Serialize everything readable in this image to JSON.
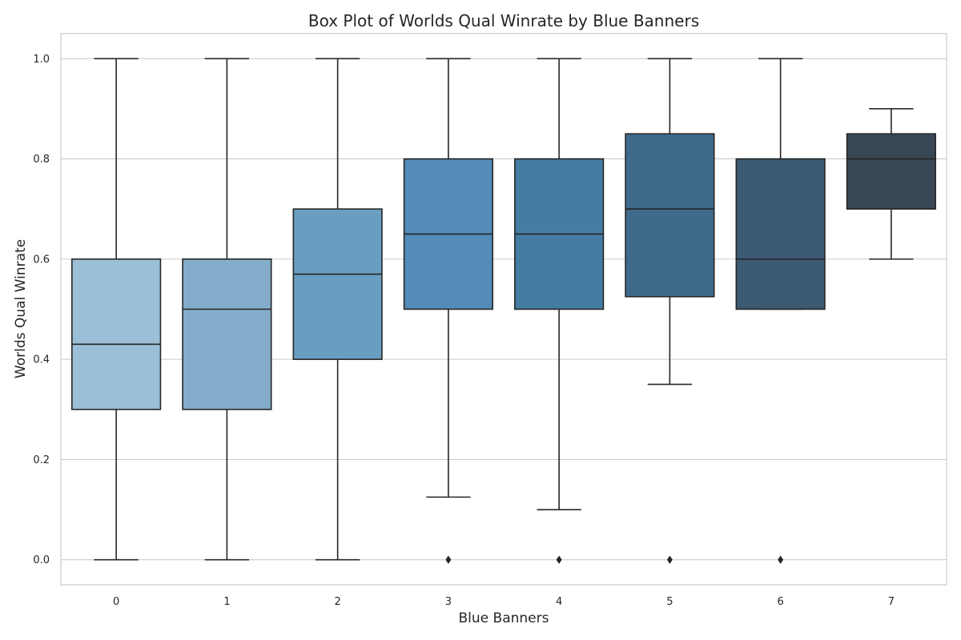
{
  "chart_data": {
    "type": "box",
    "title": "Box Plot of Worlds Qual Winrate by Blue Banners",
    "xlabel": "Blue Banners",
    "ylabel": "Worlds Qual Winrate",
    "ylim": [
      -0.05,
      1.05
    ],
    "yticks": [
      0.0,
      0.2,
      0.4,
      0.6,
      0.8,
      1.0
    ],
    "ytick_labels": [
      "0.0",
      "0.2",
      "0.4",
      "0.6",
      "0.8",
      "1.0"
    ],
    "grid": true,
    "categories": [
      "0",
      "1",
      "2",
      "3",
      "4",
      "5",
      "6",
      "7"
    ],
    "boxes": [
      {
        "category": "0",
        "whisker_low": 0.0,
        "q1": 0.3,
        "median": 0.43,
        "q3": 0.6,
        "whisker_high": 1.0,
        "outliers": [],
        "color": "#9bbfd6"
      },
      {
        "category": "1",
        "whisker_low": 0.0,
        "q1": 0.3,
        "median": 0.5,
        "q3": 0.6,
        "whisker_high": 1.0,
        "outliers": [],
        "color": "#83adca"
      },
      {
        "category": "2",
        "whisker_low": 0.0,
        "q1": 0.4,
        "median": 0.57,
        "q3": 0.7,
        "whisker_high": 1.0,
        "outliers": [],
        "color": "#6a9ec0"
      },
      {
        "category": "3",
        "whisker_low": 0.125,
        "q1": 0.5,
        "median": 0.65,
        "q3": 0.8,
        "whisker_high": 1.0,
        "outliers": [
          0.0
        ],
        "color": "#528cb7"
      },
      {
        "category": "4",
        "whisker_low": 0.1,
        "q1": 0.5,
        "median": 0.65,
        "q3": 0.8,
        "whisker_high": 1.0,
        "outliers": [
          0.0
        ],
        "color": "#457ca4"
      },
      {
        "category": "5",
        "whisker_low": 0.35,
        "q1": 0.525,
        "median": 0.7,
        "q3": 0.85,
        "whisker_high": 1.0,
        "outliers": [
          0.0
        ],
        "color": "#406a8a"
      },
      {
        "category": "6",
        "whisker_low": 0.5,
        "q1": 0.5,
        "median": 0.6,
        "q3": 0.8,
        "whisker_high": 1.0,
        "outliers": [
          0.0
        ],
        "color": "#3c5a72"
      },
      {
        "category": "7",
        "whisker_low": 0.6,
        "q1": 0.7,
        "median": 0.8,
        "q3": 0.85,
        "whisker_high": 0.9,
        "outliers": [],
        "color": "#374754"
      }
    ],
    "style": {
      "grid_color": "#cccccc",
      "spine_color": "#cccccc",
      "line_color": "#262626",
      "background": "#ffffff"
    }
  }
}
